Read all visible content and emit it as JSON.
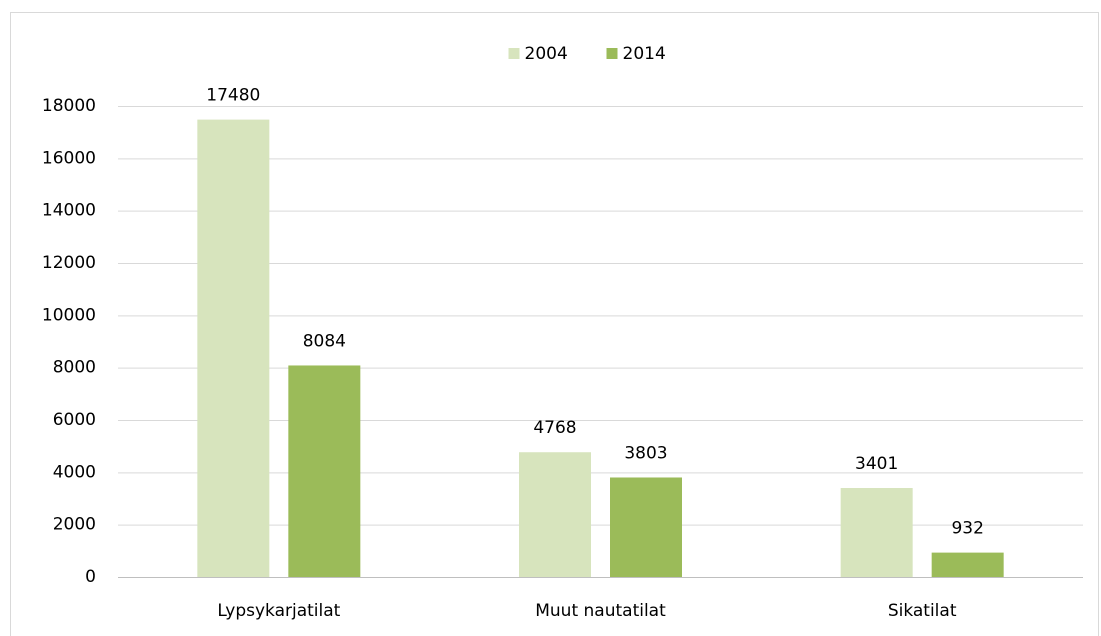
{
  "chart_data": {
    "type": "bar",
    "categories": [
      "Lypsykarjatilat",
      "Muut nautatilat",
      "Sikatilat"
    ],
    "series": [
      {
        "name": "2004",
        "color": "#d7e4bd",
        "values": [
          17480,
          4768,
          3401
        ]
      },
      {
        "name": "2014",
        "color": "#9bbb59",
        "values": [
          8084,
          3803,
          932
        ]
      }
    ],
    "ylim": [
      0,
      18000
    ],
    "yticks": [
      0,
      2000,
      4000,
      6000,
      8000,
      10000,
      12000,
      14000,
      16000,
      18000
    ],
    "grid": true,
    "legend": "top"
  }
}
